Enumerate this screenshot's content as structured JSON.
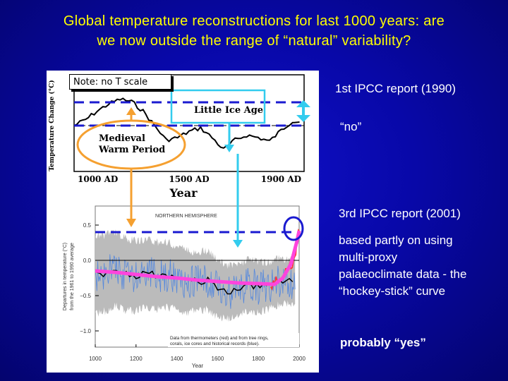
{
  "slide": {
    "title_line1": "Global temperature reconstructions for last 1000 years: are",
    "title_line2": "we now outside the range of “natural” variability?",
    "note": "Note: no T scale",
    "ipcc1_label": "1st IPCC report (1990)",
    "ipcc1_answer": "“no”",
    "ipcc3_label": "3rd IPCC report (2001)",
    "ipcc3_desc": [
      "based partly on using",
      "multi-proxy",
      "palaeoclimate data - the",
      "“hockey-stick” curve"
    ],
    "ipcc3_answer": "probably “yes”",
    "colors": {
      "title": "#ffff00",
      "background": "#0808a8",
      "annotation_dash": "#1a1ad0",
      "cyan_arrow": "#33ccee",
      "orange_arrow": "#f5a030",
      "hockey_stick": "#ff44dd",
      "proxy_blue": "#1a55cc",
      "uncertainty": "#bbbbbb",
      "thermometer_red": "#ff3333"
    }
  },
  "chart_data": [
    {
      "type": "line",
      "title": "",
      "ylabel": "Temperature Change (°C)",
      "xlabel": "Year",
      "x_tick_labels": [
        "1000 AD",
        "1500 AD",
        "1900 AD"
      ],
      "xlim": [
        1000,
        2000
      ],
      "annotations": [
        "Little Ice Age",
        "Medieval Warm Period"
      ],
      "y_scale": "none",
      "series": [
        {
          "x": [
            1000,
            1050,
            1100,
            1150,
            1200,
            1250,
            1300,
            1350,
            1400,
            1450,
            1500,
            1550,
            1600,
            1650,
            1700,
            1750,
            1800,
            1850,
            1900,
            1950,
            1980
          ],
          "values": [
            0.0,
            0.05,
            0.12,
            0.18,
            0.22,
            0.2,
            0.12,
            0.0,
            -0.12,
            -0.1,
            -0.05,
            -0.02,
            -0.1,
            -0.2,
            -0.12,
            -0.08,
            -0.1,
            -0.13,
            -0.04,
            0.04,
            0.03
          ]
        }
      ]
    },
    {
      "type": "line",
      "title": "",
      "panel_label": "NORTHERN HEMISPHERE",
      "ylabel": "Departures in temperature (°C) from the 1961 to 1990 average",
      "xlabel": "Year",
      "xlim": [
        1000,
        2000
      ],
      "ylim": [
        -1.0,
        0.5
      ],
      "y_ticks": [
        -1.0,
        -0.5,
        0.0,
        0.5
      ],
      "y_tick_labels": [
        "−1.0",
        "−0.5",
        "0.0",
        "0.5"
      ],
      "x_ticks": [
        1000,
        1200,
        1400,
        1600,
        1800,
        2000
      ],
      "legend_text": [
        "Data from thermometers (red) and from tree rings,",
        "corals, ice cores and historical records (blue)."
      ],
      "series": [
        {
          "x": [
            1000,
            1050,
            1100,
            1150,
            1200,
            1250,
            1300,
            1350,
            1400,
            1450,
            1500,
            1550,
            1600,
            1650,
            1700,
            1750,
            1800,
            1850,
            1900
          ],
          "values": [
            -0.2,
            -0.18,
            -0.12,
            -0.2,
            -0.22,
            -0.18,
            -0.22,
            -0.2,
            -0.25,
            -0.3,
            -0.3,
            -0.28,
            -0.4,
            -0.45,
            -0.42,
            -0.35,
            -0.38,
            -0.36,
            -0.3
          ]
        },
        {
          "x": [
            1860,
            1880,
            1900,
            1920,
            1940,
            1960,
            1980,
            1990,
            2000
          ],
          "values": [
            -0.35,
            -0.3,
            -0.3,
            -0.25,
            -0.05,
            -0.08,
            0.05,
            0.25,
            0.42
          ]
        }
      ],
      "hockey_stick_overlay": {
        "x": [
          1000,
          1100,
          1200,
          1300,
          1400,
          1500,
          1600,
          1700,
          1800,
          1880,
          1920,
          1960,
          1990,
          2000
        ],
        "values": [
          -0.15,
          -0.17,
          -0.2,
          -0.23,
          -0.25,
          -0.28,
          -0.3,
          -0.32,
          -0.33,
          -0.34,
          -0.25,
          -0.05,
          0.28,
          0.42
        ]
      }
    }
  ]
}
